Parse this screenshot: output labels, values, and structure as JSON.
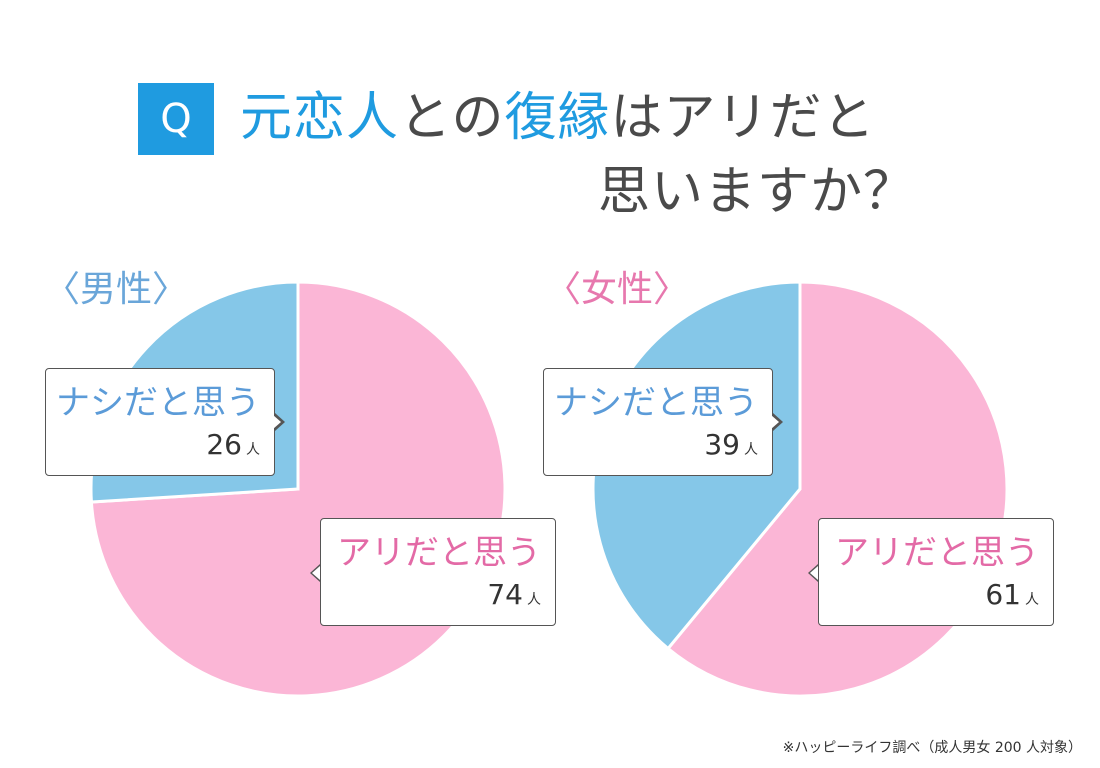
{
  "badge": "Q",
  "title": {
    "line1_a": "元恋人",
    "line1_b": "との",
    "line1_c": "復縁",
    "line1_d": "はアリだと",
    "line2": "思いますか？"
  },
  "footnote": "※ハッピーライフ調べ（成人男女 200 人対象）",
  "colors": {
    "accent": "#1f9be0",
    "pink": "#fbb6d6",
    "blue": "#85c7e8",
    "male_label": "#6aa6d9",
    "female_label": "#e778ae"
  },
  "chart_data": [
    {
      "type": "pie",
      "title": "〈男性〉",
      "unit": "人",
      "slices": [
        {
          "label": "アリだと思う",
          "value": 74,
          "color": "#fbb6d6"
        },
        {
          "label": "ナシだと思う",
          "value": 26,
          "color": "#85c7e8"
        }
      ]
    },
    {
      "type": "pie",
      "title": "〈女性〉",
      "unit": "人",
      "slices": [
        {
          "label": "アリだと思う",
          "value": 61,
          "color": "#fbb6d6"
        },
        {
          "label": "ナシだと思う",
          "value": 39,
          "color": "#85c7e8"
        }
      ]
    }
  ]
}
